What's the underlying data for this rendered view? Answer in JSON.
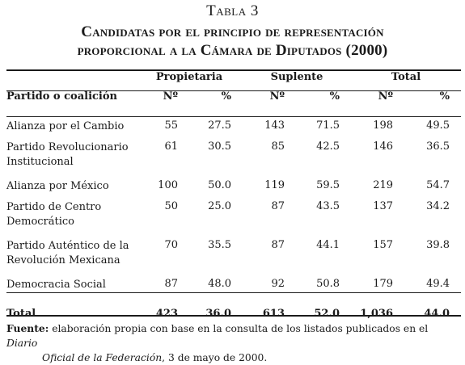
{
  "caption": {
    "label": "Tabla 3",
    "title_line1": "Candidatas por el principio de representación",
    "title_line2": "proporcional a la Cámara de Diputados (2000)"
  },
  "table": {
    "groups": [
      "Propietaria",
      "Suplente",
      "Total"
    ],
    "party_header": "Partido o coalición",
    "n_header": "Nº",
    "pct_header": "%",
    "rows": [
      {
        "party": "Alianza por el Cambio",
        "cells": [
          "55",
          "27.5",
          "143",
          "71.5",
          "198",
          "49.5"
        ]
      },
      {
        "party": "Partido Revolucionario Institucional",
        "cells": [
          "61",
          "30.5",
          "85",
          "42.5",
          "146",
          "36.5"
        ]
      },
      {
        "party": "Alianza por México",
        "cells": [
          "100",
          "50.0",
          "119",
          "59.5",
          "219",
          "54.7"
        ]
      },
      {
        "party": "Partido de Centro Democrático",
        "cells": [
          "50",
          "25.0",
          "87",
          "43.5",
          "137",
          "34.2"
        ]
      },
      {
        "party": "Partido Auténtico de la Revolución Mexicana",
        "cells": [
          "70",
          "35.5",
          "87",
          "44.1",
          "157",
          "39.8"
        ]
      },
      {
        "party": "Democracia Social",
        "cells": [
          "87",
          "48.0",
          "92",
          "50.8",
          "179",
          "49.4"
        ]
      }
    ],
    "total": {
      "label": "Total",
      "cells": [
        "423",
        "36.0",
        "613",
        "52.0",
        "1,036",
        "44.0"
      ]
    }
  },
  "footnote": {
    "label": "Fuente:",
    "text_part1": "elaboración propia con base en la consulta de los listados publicados en el",
    "source_italic_1": "Diario",
    "source_italic_2": "Oficial de la Federación",
    "text_part2": ", 3 de mayo de 2000."
  }
}
